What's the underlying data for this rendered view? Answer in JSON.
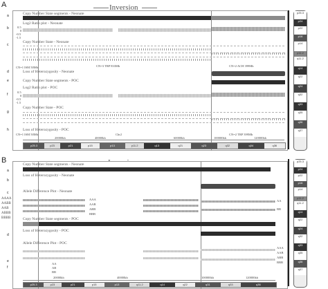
{
  "panelA": {
    "letter": "A",
    "inversion_label": "Inversion",
    "tracks": {
      "cn_segments": "Copy Number State segments - Neonate",
      "log2": "Log2 Ratio plot - Neonate",
      "cn_state": "Copy Number State - Neonate",
      "loh": "Loss of Heterozygosity - Neonate",
      "cn_segments_poc": "Copy Number State segments - POC",
      "log2_poc": "Log2 Ratio plot - POC",
      "cn_state_poc": "Copy Number State - POC",
      "loh_poc": "Loss of Heterozygosity - POC"
    },
    "row_letters": [
      "a",
      "b",
      "c",
      "d",
      "e",
      "f",
      "g",
      "h"
    ],
    "annotations": {
      "cn3_trp": "CN=3 TRP 833Mb",
      "cn2_ach": "CN=2 ACH 399Mb",
      "cn3_trp_poc": "CN=3 TRP 833Mb",
      "cn2_trp_poc": "CN=2 TRP 399Mb",
      "chr_label": "Chr2",
      "bottom_left_neonate": "CN=1 ISM 50Mb",
      "bottom_left_poc": "CN=1 ISM 50Mb"
    },
    "ylabels": [
      "0.5",
      "0",
      "-0.5",
      "-1.5"
    ],
    "cn_levels": [
      "4",
      "3",
      "2",
      "1",
      "0"
    ],
    "axis_ticks": [
      "20000kb",
      "40000kb",
      "60000kb",
      "100000kb",
      "120000kb"
    ],
    "cytobands": [
      "p25.3",
      "p24",
      "p23",
      "p22",
      "p21",
      "p16",
      "p15",
      "p14",
      "p13",
      "p12",
      "p11.2",
      "q11.2",
      "q13",
      "q14",
      "q21",
      "q22",
      "q23",
      "q24",
      "q31",
      "q32",
      "q33",
      "q34",
      "q35",
      "q36",
      "q37"
    ]
  },
  "panelB": {
    "letter": "B",
    "inversion_label": "Inversion",
    "tracks": {
      "cn_segments": "Copy Number State segments - Neonate",
      "loh": "Loss of Heterozygosity - Neonate",
      "allele": "Allele Difference Plot - Neonate",
      "cn_segments_poc": "Copy Number State segments - POC",
      "loh_poc": "Loss of Heterozygosity - POC",
      "allele_poc": "Allele Difference Plot - POC"
    },
    "row_letters": [
      "a",
      "b",
      "c",
      "d",
      "e",
      "f"
    ],
    "genotypes_left": [
      "AAAA",
      "AABB",
      "AAB",
      "ABBB",
      "BBBB"
    ],
    "genotypes_right": [
      "AAA",
      "AAB",
      "ABB",
      "BBB"
    ],
    "genotypes_right2": [
      "AA",
      "AB",
      "BB"
    ],
    "genotypes_right3": [
      "AAA",
      "AAB",
      "ABB",
      "BBB"
    ],
    "axis_ticks": [
      "20000kb",
      "40000kb",
      "100000kb",
      "120000kb"
    ],
    "cytobands": [
      "p25.3",
      "p24",
      "p23",
      "p22",
      "p21",
      "p16",
      "p15",
      "p14",
      "p13",
      "p12",
      "p11.2",
      "q11.2",
      "q13",
      "q14",
      "q21",
      "q22",
      "q23",
      "q24",
      "q31",
      "q32",
      "q33",
      "q34",
      "q35",
      "q36",
      "q37"
    ]
  },
  "colors": {
    "segment_dark": "#2b2b2b",
    "segment_grey": "#888888",
    "frame": "#9a9a9a",
    "background": "#ffffff"
  }
}
